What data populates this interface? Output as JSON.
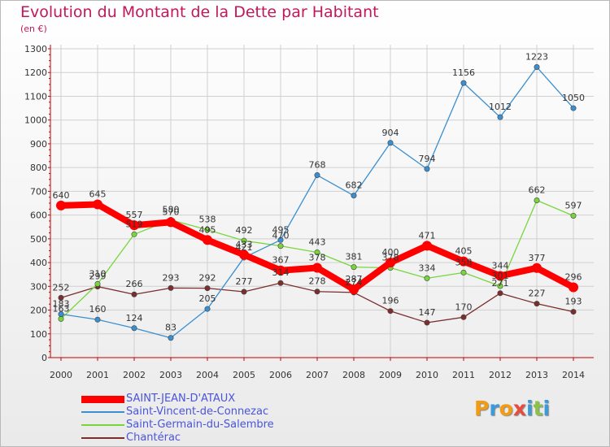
{
  "title": "Evolution du Montant de la Dette par Habitant",
  "subtitle": "(en €)",
  "logo": {
    "letters": [
      "P",
      "r",
      "o",
      "x",
      "i",
      "t",
      "i"
    ],
    "colors": [
      "#f39c12",
      "#3b9ad9",
      "#f39c12",
      "#e74c3c",
      "#3b9ad9",
      "#8bc34a",
      "#3b9ad9"
    ]
  },
  "chart_data": {
    "type": "line",
    "title": "Evolution du Montant de la Dette par Habitant",
    "ylabel": "(en €)",
    "xlabel": "",
    "ylim": [
      0,
      1300
    ],
    "yticks": [
      0,
      100,
      200,
      300,
      400,
      500,
      600,
      700,
      800,
      900,
      1000,
      1100,
      1200,
      1300
    ],
    "x": [
      "2000",
      "2001",
      "2002",
      "2003",
      "2004",
      "2005",
      "2006",
      "2007",
      "2008",
      "2009",
      "2010",
      "2011",
      "2012",
      "2013",
      "2014"
    ],
    "grid": true,
    "legend": "bottom-left",
    "series": [
      {
        "name": "SAINT-JEAN-D'ATAUX",
        "color": "#ff0000",
        "values": [
          640,
          645,
          557,
          570,
          495,
          433,
          367,
          378,
          287,
          400,
          471,
          405,
          344,
          377,
          296
        ]
      },
      {
        "name": "Saint-Vincent-de-Connezac",
        "color": "#3a8fd0",
        "values": [
          183,
          160,
          124,
          83,
          205,
          421,
          495,
          768,
          682,
          904,
          794,
          1156,
          1012,
          1223,
          1050
        ]
      },
      {
        "name": "Saint-Germain-du-Salembre",
        "color": "#78d63c",
        "values": [
          163,
          310,
          519,
          580,
          538,
          492,
          470,
          443,
          381,
          378,
          334,
          358,
          301,
          662,
          597
        ]
      },
      {
        "name": "Chantérac",
        "color": "#7a2e2e",
        "values": [
          252,
          299,
          266,
          293,
          292,
          277,
          314,
          278,
          274,
          196,
          147,
          170,
          271,
          227,
          193
        ]
      }
    ]
  }
}
